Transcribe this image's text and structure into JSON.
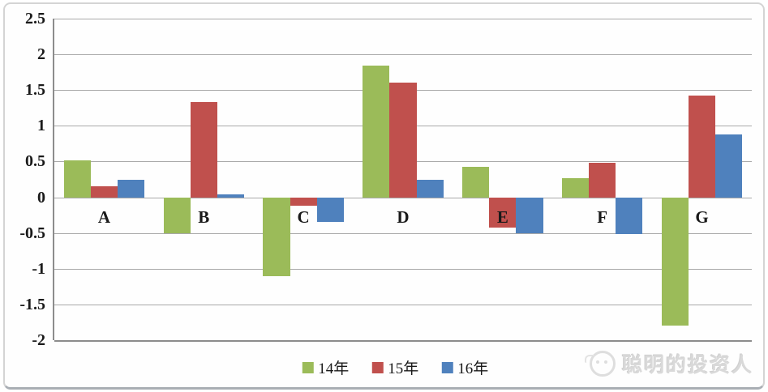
{
  "chart_data": {
    "type": "bar",
    "categories": [
      "A",
      "B",
      "C",
      "D",
      "E",
      "F",
      "G"
    ],
    "series": [
      {
        "name": "14年",
        "color": "#9bbb59",
        "values": [
          0.52,
          -0.5,
          -1.1,
          1.84,
          0.43,
          0.27,
          -1.8
        ]
      },
      {
        "name": "15年",
        "color": "#c0504d",
        "values": [
          0.15,
          1.33,
          -0.12,
          1.6,
          -0.43,
          0.48,
          1.42
        ]
      },
      {
        "name": "16年",
        "color": "#4f81bd",
        "values": [
          0.24,
          0.04,
          -0.35,
          0.25,
          -0.5,
          -0.52,
          0.88
        ]
      }
    ],
    "title": "",
    "xlabel": "",
    "ylabel": "",
    "ylim": [
      -2,
      2.5
    ],
    "ytick_step": 0.5,
    "ytick_labels": [
      "2.5",
      "2",
      "1.5",
      "1",
      "0.5",
      "0",
      "-0.5",
      "-1",
      "-1.5",
      "-2"
    ],
    "grid": true,
    "legend_position": "bottom"
  },
  "watermark": {
    "text": "聪明的投资人",
    "logo": "face-logo-icon"
  },
  "colors": {
    "gridline": "#a9a9a9",
    "axis": "#8c8c8c",
    "watermark_text": "#d9d9d9"
  }
}
